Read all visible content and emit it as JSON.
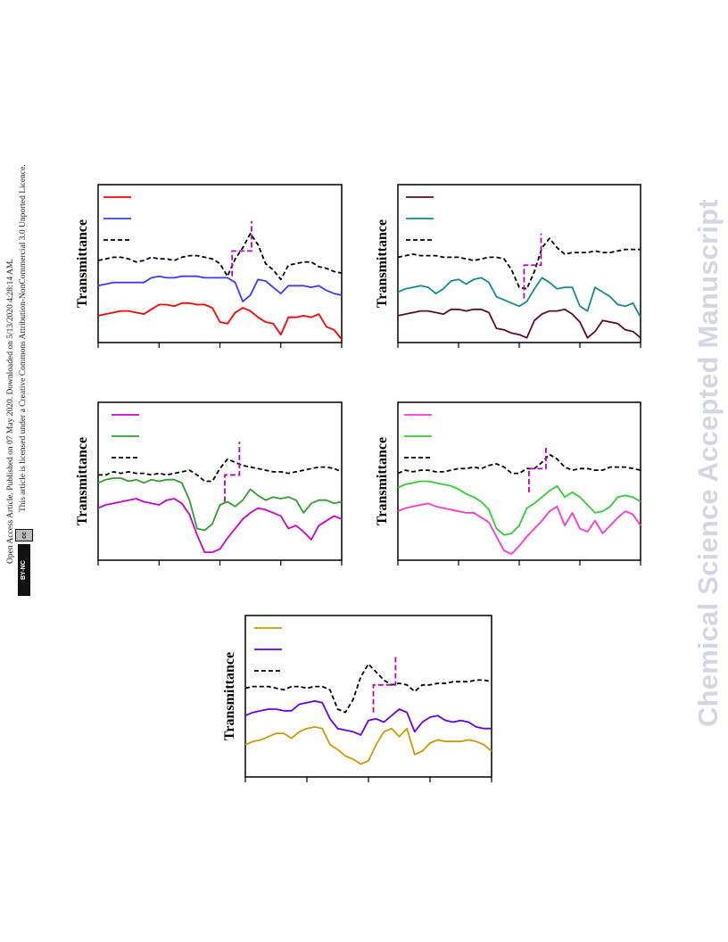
{
  "side_notice": {
    "line1": "Open Access Article. Published on 07 May 2020. Downloaded on 5/13/2020 4:28:14 AM.",
    "line2": "This article is licensed under a Creative Commons Attribution-NonCommercial 3.0 Unported Licence.",
    "badge_cc": "cc",
    "badge_by_nc": "BY-NC"
  },
  "watermark": "Chemical Science Accepted Manuscript",
  "colors": {
    "red": "#ff0000",
    "blue": "#3b3bff",
    "maroon": "#5c0a2f",
    "teal": "#158a8a",
    "magenta": "#cc00cc",
    "green": "#2e9e2e",
    "pink": "#ff33cc",
    "lime": "#33cc33",
    "gold": "#cc9900",
    "violet": "#6600ee",
    "black": "#000000",
    "marker": "#bb00bb"
  },
  "chart_data": [
    {
      "type": "line",
      "ylabel": "Transmittance",
      "x_ticks": 5,
      "xlim": [
        0,
        100
      ],
      "ylim": [
        0,
        100
      ],
      "legend": "top-left",
      "series": [
        {
          "color_key": "red",
          "dash": false,
          "values": [
            17,
            18,
            19,
            20,
            20,
            19,
            18,
            21,
            24,
            24,
            23,
            25,
            25,
            24,
            24,
            22,
            13,
            12,
            19,
            22,
            20,
            16,
            13,
            12,
            5,
            16,
            16,
            17,
            16,
            18,
            10,
            8,
            2
          ]
        },
        {
          "color_key": "blue",
          "dash": false,
          "values": [
            36,
            37,
            38,
            38,
            38,
            38,
            38,
            41,
            42,
            41,
            41,
            42,
            42,
            42,
            41,
            41,
            41,
            41,
            38,
            26,
            30,
            40,
            39,
            35,
            31,
            36,
            36,
            36,
            35,
            36,
            33,
            31,
            30
          ]
        },
        {
          "color_key": "black",
          "dash": true,
          "values": [
            52,
            53,
            54,
            54,
            53,
            51,
            52,
            54,
            53,
            53,
            52,
            54,
            55,
            55,
            54,
            53,
            50,
            42,
            53,
            60,
            69,
            62,
            50,
            46,
            40,
            49,
            50,
            51,
            51,
            48,
            47,
            45,
            44
          ]
        }
      ],
      "marker": {
        "x1": 55,
        "x2": 63,
        "y_low": 42,
        "y_mid": 58,
        "y_top": 77
      }
    },
    {
      "type": "line",
      "ylabel": "Transmittance",
      "x_ticks": 5,
      "xlim": [
        0,
        100
      ],
      "ylim": [
        0,
        100
      ],
      "legend": "top-left",
      "series": [
        {
          "color_key": "maroon",
          "dash": false,
          "values": [
            17,
            18,
            19,
            20,
            20,
            19,
            18,
            21,
            21,
            20,
            21,
            21,
            19,
            9,
            8,
            6,
            5,
            3,
            14,
            18,
            20,
            20,
            21,
            18,
            13,
            3,
            7,
            14,
            13,
            12,
            8,
            7,
            3
          ]
        },
        {
          "color_key": "teal",
          "dash": false,
          "values": [
            32,
            34,
            35,
            36,
            35,
            31,
            34,
            39,
            40,
            37,
            40,
            41,
            38,
            29,
            27,
            25,
            23,
            26,
            34,
            41,
            38,
            34,
            35,
            35,
            23,
            20,
            35,
            32,
            29,
            24,
            23,
            25,
            16
          ]
        },
        {
          "color_key": "black",
          "dash": true,
          "values": [
            54,
            55,
            56,
            55,
            55,
            55,
            54,
            54,
            54,
            53,
            52,
            53,
            54,
            54,
            53,
            46,
            35,
            34,
            45,
            60,
            66,
            60,
            56,
            57,
            57,
            57,
            58,
            57,
            57,
            58,
            59,
            59,
            59
          ]
        }
      ],
      "marker": {
        "x1": 52,
        "x2": 59,
        "y_low": 28,
        "y_mid": 49,
        "y_top": 69
      }
    },
    {
      "type": "line",
      "ylabel": "Transmittance",
      "x_ticks": 5,
      "xlim": [
        0,
        100
      ],
      "ylim": [
        0,
        100
      ],
      "legend": "top-left",
      "series": [
        {
          "color_key": "magenta",
          "dash": false,
          "values": [
            33,
            35,
            36,
            37,
            38,
            39,
            37,
            36,
            35,
            38,
            39,
            36,
            29,
            16,
            5,
            5,
            7,
            14,
            20,
            26,
            30,
            33,
            32,
            30,
            28,
            20,
            22,
            18,
            13,
            22,
            25,
            28,
            26
          ]
        },
        {
          "color_key": "green",
          "dash": false,
          "values": [
            49,
            51,
            52,
            52,
            50,
            51,
            49,
            51,
            50,
            51,
            51,
            49,
            38,
            20,
            19,
            23,
            35,
            37,
            34,
            38,
            45,
            41,
            38,
            40,
            39,
            40,
            38,
            30,
            36,
            38,
            38,
            36,
            37
          ]
        },
        {
          "color_key": "black",
          "dash": true,
          "values": [
            54,
            54,
            56,
            55,
            56,
            55,
            55,
            54,
            55,
            54,
            55,
            56,
            57,
            54,
            50,
            50,
            58,
            64,
            62,
            60,
            59,
            58,
            57,
            56,
            56,
            55,
            56,
            57,
            58,
            59,
            59,
            58,
            56
          ]
        }
      ],
      "marker": {
        "x1": 52,
        "x2": 58,
        "y_low": 37,
        "y_mid": 54,
        "y_top": 75
      }
    },
    {
      "type": "line",
      "ylabel": "Transmittance",
      "x_ticks": 5,
      "xlim": [
        0,
        100
      ],
      "ylim": [
        0,
        100
      ],
      "legend": "top-left",
      "series": [
        {
          "color_key": "pink",
          "dash": false,
          "values": [
            31,
            33,
            34,
            35,
            36,
            34,
            33,
            32,
            31,
            30,
            30,
            27,
            24,
            15,
            6,
            4,
            9,
            15,
            20,
            25,
            31,
            34,
            22,
            30,
            20,
            18,
            25,
            17,
            22,
            27,
            31,
            29,
            22
          ]
        },
        {
          "color_key": "lime",
          "dash": false,
          "values": [
            46,
            48,
            49,
            50,
            50,
            49,
            48,
            47,
            45,
            42,
            40,
            37,
            32,
            20,
            16,
            17,
            22,
            33,
            36,
            40,
            44,
            47,
            40,
            43,
            40,
            35,
            30,
            31,
            34,
            40,
            41,
            40,
            37
          ]
        },
        {
          "color_key": "black",
          "dash": true,
          "values": [
            55,
            57,
            56,
            57,
            57,
            56,
            56,
            57,
            58,
            58,
            59,
            58,
            60,
            61,
            59,
            55,
            55,
            58,
            58,
            62,
            67,
            64,
            59,
            57,
            58,
            58,
            57,
            57,
            59,
            59,
            59,
            58,
            57
          ]
        }
      ],
      "marker": {
        "x1": 54,
        "x2": 61,
        "y_low": 43,
        "y_mid": 58,
        "y_top": 73
      }
    },
    {
      "type": "line",
      "ylabel": "Transmittance",
      "x_ticks": 5,
      "xlim": [
        0,
        100
      ],
      "ylim": [
        0,
        100
      ],
      "legend": "top-left",
      "series": [
        {
          "color_key": "gold",
          "dash": false,
          "values": [
            20,
            22,
            23,
            25,
            27,
            27,
            24,
            28,
            30,
            31,
            30,
            20,
            17,
            13,
            11,
            8,
            10,
            20,
            28,
            30,
            25,
            30,
            14,
            16,
            21,
            23,
            22,
            22,
            22,
            23,
            22,
            20,
            16
          ]
        },
        {
          "color_key": "violet",
          "dash": false,
          "values": [
            38,
            40,
            41,
            42,
            42,
            41,
            41,
            45,
            46,
            47,
            46,
            36,
            30,
            29,
            28,
            26,
            35,
            36,
            34,
            38,
            42,
            40,
            28,
            34,
            37,
            38,
            35,
            34,
            35,
            34,
            31,
            30,
            30
          ]
        },
        {
          "color_key": "black",
          "dash": true,
          "values": [
            55,
            56,
            56,
            56,
            55,
            54,
            56,
            56,
            55,
            56,
            56,
            54,
            42,
            40,
            48,
            62,
            70,
            65,
            60,
            57,
            58,
            57,
            53,
            57,
            57,
            58,
            58,
            59,
            59,
            59,
            60,
            60,
            59
          ]
        }
      ],
      "marker": {
        "x1": 52,
        "x2": 61,
        "y_low": 40,
        "y_mid": 57,
        "y_top": 75
      }
    }
  ]
}
